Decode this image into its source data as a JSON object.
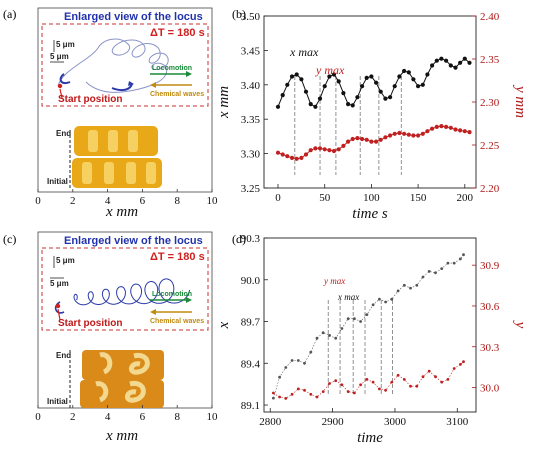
{
  "panel_a": {
    "label": "(a)",
    "inset_title": "Enlarged view of  the locus",
    "delta_t": "ΔT = 180 s",
    "scale_v": "5 μm",
    "scale_h": "5 μm",
    "start_position": "Start position",
    "locomotion": "Locomotion",
    "chemical_waves": "Chemical waves",
    "end_label": "End",
    "initial_label": "Initial",
    "xlabel": "x mm",
    "xticks": [
      "0",
      "2",
      "4",
      "6",
      "8",
      "10"
    ]
  },
  "panel_c": {
    "label": "(c)",
    "inset_title": "Enlarged view of  the locus",
    "delta_t": "ΔT = 180 s",
    "scale_v": "5 μm",
    "scale_h": "5 μm",
    "start_position": "Start position",
    "locomotion": "Locomotion",
    "chemical_waves": "Chemical waves",
    "end_label": "End",
    "initial_label": "Initial",
    "xlabel": "x mm",
    "xticks": [
      "0",
      "2",
      "4",
      "6",
      "8",
      "10"
    ]
  },
  "chart_data": [
    {
      "panel": "(b)",
      "type": "line",
      "xlabel": "time s",
      "ylabel": "x mm",
      "ylabel_right": "y mm",
      "xlim": [
        -15,
        212
      ],
      "ylim": [
        3.25,
        3.5
      ],
      "ylim_right": [
        2.2,
        2.4
      ],
      "xticks": [
        0,
        50,
        100,
        150,
        200
      ],
      "yticks": [
        3.25,
        3.3,
        3.35,
        3.4,
        3.45,
        3.5
      ],
      "yticks_right": [
        2.2,
        2.25,
        2.3,
        2.35,
        2.4
      ],
      "annotations": [
        "x max",
        "y max"
      ],
      "series": [
        {
          "name": "x",
          "axis": "left",
          "color": "#111111",
          "x": [
            0,
            5,
            10,
            15,
            20,
            25,
            30,
            35,
            40,
            45,
            50,
            55,
            60,
            65,
            70,
            75,
            80,
            85,
            90,
            95,
            100,
            105,
            110,
            115,
            120,
            125,
            130,
            135,
            140,
            145,
            150,
            155,
            160,
            165,
            170,
            175,
            180,
            185,
            190,
            195,
            200,
            205
          ],
          "y": [
            3.368,
            3.385,
            3.4,
            3.412,
            3.415,
            3.408,
            3.39,
            3.372,
            3.368,
            3.38,
            3.398,
            3.412,
            3.415,
            3.405,
            3.388,
            3.372,
            3.37,
            3.382,
            3.398,
            3.41,
            3.412,
            3.403,
            3.39,
            3.38,
            3.382,
            3.398,
            3.412,
            3.42,
            3.418,
            3.408,
            3.398,
            3.4,
            3.415,
            3.428,
            3.435,
            3.438,
            3.435,
            3.428,
            3.425,
            3.432,
            3.438,
            3.432
          ]
        },
        {
          "name": "y",
          "axis": "right",
          "color": "#c02020",
          "x": [
            0,
            5,
            10,
            15,
            20,
            25,
            30,
            35,
            40,
            45,
            50,
            55,
            60,
            65,
            70,
            75,
            80,
            85,
            90,
            95,
            100,
            105,
            110,
            115,
            120,
            125,
            130,
            135,
            140,
            145,
            150,
            155,
            160,
            165,
            170,
            175,
            180,
            185,
            190,
            195,
            200,
            205
          ],
          "y": [
            2.241,
            2.239,
            2.237,
            2.235,
            2.234,
            2.235,
            2.239,
            2.244,
            2.246,
            2.246,
            2.245,
            2.244,
            2.243,
            2.245,
            2.249,
            2.254,
            2.257,
            2.258,
            2.257,
            2.256,
            2.254,
            2.254,
            2.256,
            2.259,
            2.261,
            2.263,
            2.264,
            2.263,
            2.262,
            2.261,
            2.261,
            2.263,
            2.266,
            2.269,
            2.271,
            2.272,
            2.271,
            2.27,
            2.268,
            2.267,
            2.266,
            2.265
          ]
        }
      ],
      "guides": [
        18,
        45,
        62,
        88,
        108,
        132
      ]
    },
    {
      "panel": "(d)",
      "type": "scatter",
      "xlabel": "time",
      "ylabel": "x",
      "ylabel_right": "y",
      "xlim": [
        2790,
        3130
      ],
      "ylim": [
        89.05,
        90.3
      ],
      "ylim_right": [
        29.82,
        31.1
      ],
      "xticks": [
        2800,
        2900,
        3000,
        3100
      ],
      "yticks": [
        89.1,
        89.4,
        89.7,
        90.0,
        90.3
      ],
      "yticks_right": [
        30.0,
        30.3,
        30.6,
        30.9
      ],
      "annotations": [
        "y max",
        "x max"
      ],
      "series": [
        {
          "name": "x",
          "axis": "left",
          "color": "#555555",
          "x": [
            2805,
            2815,
            2825,
            2835,
            2845,
            2855,
            2865,
            2875,
            2885,
            2895,
            2905,
            2915,
            2925,
            2935,
            2945,
            2955,
            2965,
            2975,
            2985,
            2995,
            3005,
            3015,
            3025,
            3035,
            3045,
            3055,
            3065,
            3075,
            3085,
            3095,
            3105,
            3110
          ],
          "y": [
            89.15,
            89.3,
            89.37,
            89.42,
            89.42,
            89.4,
            89.48,
            89.58,
            89.62,
            89.6,
            89.58,
            89.65,
            89.72,
            89.72,
            89.7,
            89.75,
            89.82,
            89.86,
            89.84,
            89.86,
            89.92,
            89.96,
            89.94,
            89.96,
            90.02,
            90.06,
            90.05,
            90.08,
            90.12,
            90.12,
            90.15,
            90.18
          ]
        },
        {
          "name": "y",
          "axis": "right",
          "color": "#c02020",
          "x": [
            2805,
            2815,
            2825,
            2835,
            2845,
            2855,
            2865,
            2875,
            2885,
            2895,
            2905,
            2915,
            2925,
            2935,
            2945,
            2955,
            2965,
            2975,
            2985,
            2995,
            3005,
            3015,
            3025,
            3035,
            3045,
            3055,
            3065,
            3075,
            3085,
            3095,
            3105,
            3110
          ],
          "y": [
            29.96,
            29.93,
            29.92,
            29.95,
            29.99,
            29.98,
            29.95,
            29.93,
            29.97,
            30.03,
            30.05,
            30.02,
            29.97,
            29.96,
            30.02,
            30.06,
            30.04,
            29.99,
            29.98,
            30.04,
            30.09,
            30.06,
            30.01,
            30.01,
            30.08,
            30.12,
            30.08,
            30.04,
            30.06,
            30.14,
            30.17,
            30.19
          ]
        }
      ],
      "guides": [
        2893,
        2912,
        2933,
        2952,
        2978,
        2996
      ]
    }
  ]
}
